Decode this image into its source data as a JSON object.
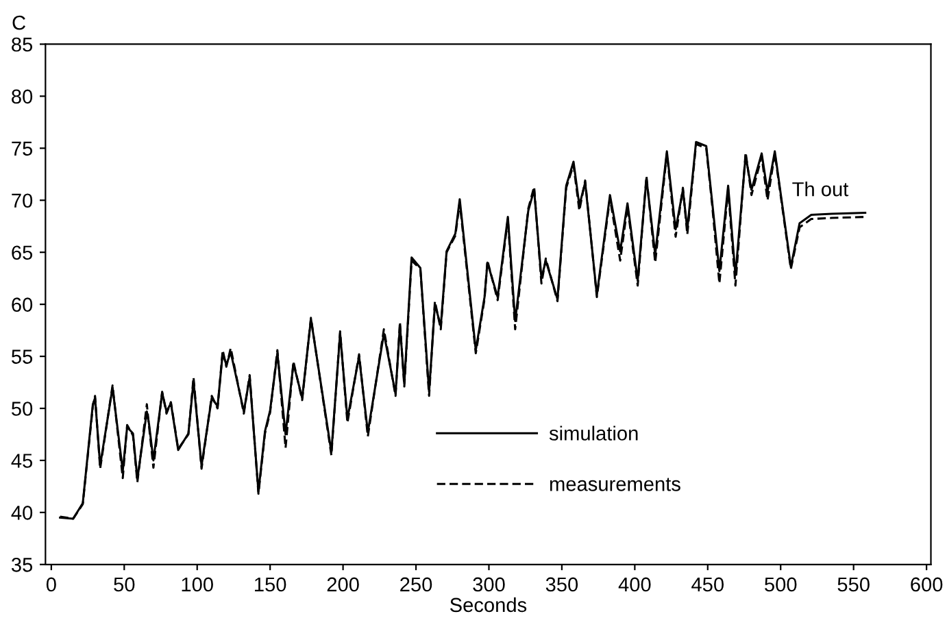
{
  "chart_data": {
    "type": "line",
    "xlabel": "Seconds",
    "ylabel": "C",
    "xlim": [
      -4,
      603
    ],
    "xticks": [
      0,
      50,
      100,
      150,
      200,
      250,
      300,
      350,
      400,
      450,
      500,
      550,
      600
    ],
    "ylim": [
      35,
      85
    ],
    "yticks": [
      35,
      40,
      45,
      50,
      55,
      60,
      65,
      70,
      75,
      80,
      85
    ],
    "grid": false,
    "legend": "bottom",
    "marker": "none",
    "annotations": [
      "Th out"
    ],
    "series": [
      {
        "name": "simulation",
        "color": "#000000",
        "line_style": "solid",
        "x": [
          6,
          15,
          21.6,
          28.5,
          30,
          33.5,
          42,
          49,
          52,
          56,
          59,
          65.5,
          67,
          70,
          76,
          79,
          82,
          87,
          94,
          97.5,
          103,
          110,
          114,
          117.5,
          120,
          123,
          132,
          136,
          142,
          146.5,
          150,
          155,
          160.6,
          166,
          172,
          178,
          192,
          198,
          203,
          211,
          217,
          228,
          236,
          239,
          242,
          247,
          253,
          259,
          263,
          267,
          271,
          277,
          280,
          291,
          297,
          299,
          306,
          313,
          318,
          327,
          331,
          336,
          339,
          347,
          353,
          358,
          362,
          366,
          374,
          383,
          390,
          395,
          402,
          408,
          414,
          422,
          428,
          433,
          436,
          442,
          449,
          453,
          458,
          464,
          469,
          476,
          480,
          487,
          491,
          496,
          507,
          513,
          521,
          535,
          558
        ],
        "values": [
          39.5,
          39.4,
          40.9,
          50.4,
          51,
          44.5,
          52,
          44,
          48.2,
          47.6,
          43.2,
          49.7,
          48.5,
          45,
          51.5,
          49.7,
          50.5,
          46,
          47.6,
          52.6,
          44.5,
          51,
          50.2,
          55.3,
          54.2,
          55.4,
          49.7,
          53,
          42,
          47.8,
          49.8,
          55.3,
          47.5,
          54.3,
          51,
          58.6,
          45.8,
          57.2,
          49,
          55,
          47.7,
          57.2,
          51.4,
          58,
          52.4,
          64.5,
          63.5,
          51.6,
          60,
          57.9,
          65.1,
          66.8,
          70.1,
          55.6,
          60.7,
          64,
          60.7,
          68.4,
          58.4,
          69,
          71,
          62.5,
          64.2,
          60.5,
          71.4,
          73.7,
          69.5,
          71.7,
          60.9,
          70.5,
          65.1,
          69.7,
          62.3,
          72.1,
          64.8,
          74.7,
          67.2,
          71,
          67.2,
          75.6,
          75.2,
          69.9,
          63.2,
          71.4,
          62.8,
          74.3,
          71,
          74.5,
          70.8,
          74.7,
          63.6,
          67.8,
          68.6,
          68.7,
          68.8
        ]
      },
      {
        "name": "measurements",
        "color": "#000000",
        "line_style": "dashed",
        "x": [
          6,
          15,
          21.6,
          28.5,
          30,
          33.5,
          42,
          49,
          52,
          56,
          59,
          65.5,
          67,
          70,
          76,
          79,
          82,
          87,
          94,
          97.5,
          103,
          110,
          114,
          117.5,
          120,
          123,
          132,
          136,
          142,
          146.5,
          150,
          155,
          160.6,
          166,
          172,
          178,
          192,
          198,
          203,
          211,
          217,
          228,
          236,
          239,
          242,
          247,
          253,
          259,
          263,
          267,
          271,
          277,
          280,
          291,
          297,
          299,
          306,
          313,
          318,
          327,
          331,
          336,
          339,
          347,
          353,
          358,
          362,
          366,
          374,
          383,
          390,
          395,
          402,
          408,
          414,
          422,
          428,
          433,
          436,
          442,
          449,
          453,
          458,
          464,
          469,
          476,
          480,
          487,
          491,
          496,
          507,
          513,
          521,
          535,
          558
        ],
        "values": [
          39.6,
          39.4,
          40.8,
          50.2,
          51.2,
          44.2,
          52.2,
          43.3,
          48.4,
          47.4,
          42.9,
          50.4,
          48.3,
          44.3,
          51.6,
          49.5,
          50.6,
          46.1,
          47.5,
          53,
          44.2,
          51.2,
          50,
          55.6,
          54,
          55.8,
          49.5,
          53.2,
          41.8,
          47.6,
          49.6,
          55.6,
          46.2,
          54.5,
          50.8,
          58.7,
          45.5,
          57.4,
          48.6,
          55.2,
          47.3,
          57.6,
          51.2,
          58.3,
          52.1,
          64.2,
          63.4,
          51.2,
          60.3,
          57.6,
          65,
          66.6,
          69.8,
          55.3,
          60.5,
          64.2,
          60.4,
          68.2,
          57.6,
          69.2,
          71.3,
          62,
          64.4,
          60.3,
          71.2,
          73.4,
          69,
          71.9,
          60.7,
          70.2,
          64.2,
          69.4,
          61.8,
          72.3,
          64,
          74.5,
          66.5,
          71.2,
          66.7,
          75.4,
          75,
          69.6,
          62,
          71.1,
          61.8,
          74.6,
          70.5,
          74.2,
          70,
          74.5,
          63.4,
          67.4,
          68.2,
          68.3,
          68.4
        ]
      }
    ]
  }
}
